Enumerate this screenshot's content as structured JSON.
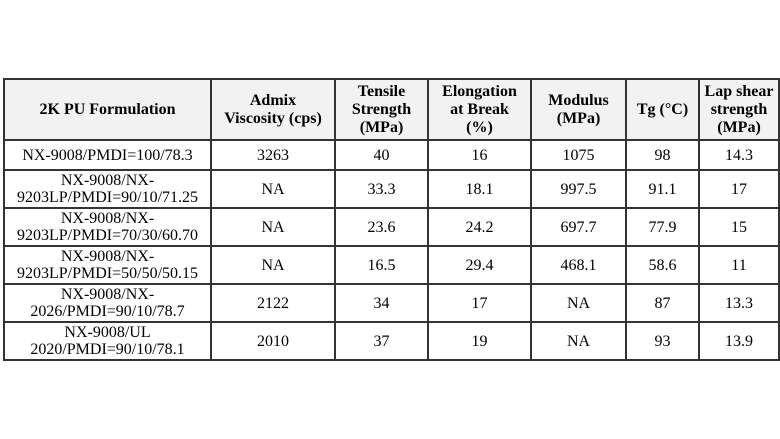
{
  "page": {
    "background_color": "#ffffff"
  },
  "table": {
    "description": "2K PU formulation properties table",
    "header_bg_color": "#f2f2f2",
    "border_color": "#333333",
    "columns": [
      "2K PU Formulation",
      "Admix\nViscosity (cps)",
      "Tensile\nStrength\n(MPa)",
      "Elongation\nat Break\n(%)",
      "Modulus\n(MPa)",
      "Tg (°C)",
      "Lap shear\nstrength\n(MPa)"
    ],
    "rows": [
      {
        "cells": [
          "NX-9008/PMDI=100/78.3",
          "3263",
          "40",
          "16",
          "1075",
          "98",
          "14.3"
        ]
      },
      {
        "cells": [
          "NX-9008/NX-\n9203LP/PMDI=90/10/71.25",
          "NA",
          "33.3",
          "18.1",
          "997.5",
          "91.1",
          "17"
        ]
      },
      {
        "cells": [
          "NX-9008/NX-\n9203LP/PMDI=70/30/60.70",
          "NA",
          "23.6",
          "24.2",
          "697.7",
          "77.9",
          "15"
        ]
      },
      {
        "cells": [
          "NX-9008/NX-\n9203LP/PMDI=50/50/50.15",
          "NA",
          "16.5",
          "29.4",
          "468.1",
          "58.6",
          "11"
        ]
      },
      {
        "cells": [
          "NX-9008/NX-\n2026/PMDI=90/10/78.7",
          "2122",
          "34",
          "17",
          "NA",
          "87",
          "13.3"
        ]
      },
      {
        "cells": [
          "NX-9008/UL\n2020/PMDI=90/10/78.1",
          "2010",
          "37",
          "19",
          "NA",
          "93",
          "13.9"
        ]
      }
    ]
  }
}
